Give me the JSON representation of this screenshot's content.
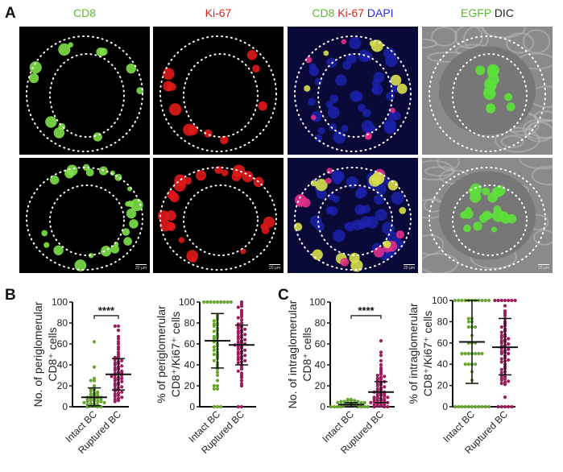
{
  "panel_labels": {
    "a": "A",
    "b": "B",
    "c": "C"
  },
  "column_titles": [
    {
      "parts": [
        {
          "text": "CD8",
          "color": "#5cb82e"
        }
      ]
    },
    {
      "parts": [
        {
          "text": "Ki-67",
          "color": "#e0201a"
        }
      ]
    },
    {
      "parts": [
        {
          "text": "CD8 ",
          "color": "#5cb82e"
        },
        {
          "text": "Ki-67 ",
          "color": "#e0201a"
        },
        {
          "text": "DAPI",
          "color": "#2a2ae0"
        }
      ]
    },
    {
      "parts": [
        {
          "text": "EGFP ",
          "color": "#5cb82e"
        },
        {
          "text": "DIC",
          "color": "#222222"
        }
      ]
    }
  ],
  "scale_bar": "20 μm",
  "colors": {
    "intact": "#6aa532",
    "ruptured": "#9b1c5c"
  },
  "chart_data": [
    {
      "type": "scatter",
      "ylabel": [
        "No. of periglomerular",
        "CD8⁺ cells"
      ],
      "ylim": [
        0,
        100
      ],
      "yticks": [
        "0",
        "20",
        "40",
        "60",
        "80",
        "100"
      ],
      "categories": [
        "Intact BC",
        "Ruptured BC"
      ],
      "significance": "****",
      "series": [
        {
          "category": "Intact BC",
          "mean": 9,
          "sd_range": [
            1,
            18
          ],
          "values": [
            62,
            38,
            27,
            25,
            25,
            20,
            18,
            17,
            16,
            15,
            14,
            13,
            12,
            12,
            11,
            10,
            10,
            9,
            9,
            8,
            8,
            8,
            7,
            7,
            6,
            6,
            5,
            5,
            5,
            4,
            4,
            3,
            3,
            2,
            2,
            1,
            1,
            0,
            0,
            0
          ]
        },
        {
          "category": "Ruptured BC",
          "mean": 31,
          "sd_range": [
            16,
            46
          ],
          "values": [
            77,
            77,
            73,
            67,
            65,
            62,
            60,
            57,
            55,
            52,
            50,
            48,
            47,
            46,
            45,
            44,
            43,
            42,
            41,
            40,
            39,
            38,
            37,
            36,
            35,
            34,
            33,
            32,
            32,
            31,
            30,
            30,
            29,
            28,
            27,
            27,
            26,
            25,
            24,
            23,
            22,
            21,
            20,
            19,
            18,
            17,
            16,
            15,
            14,
            13,
            12,
            11,
            10,
            9,
            8,
            7,
            6,
            5
          ]
        }
      ]
    },
    {
      "type": "scatter",
      "ylabel": [
        "% of periglomerular",
        "CD8⁺/Ki67⁺ cells"
      ],
      "ylim": [
        0,
        100
      ],
      "yticks": [
        "0",
        "20",
        "40",
        "60",
        "80",
        "100"
      ],
      "categories": [
        "Intact BC",
        "Ruptured BC"
      ],
      "series": [
        {
          "category": "Intact BC",
          "mean": 63,
          "sd_range": [
            37,
            89
          ],
          "values": [
            100,
            100,
            100,
            100,
            100,
            100,
            100,
            100,
            100,
            87,
            85,
            83,
            82,
            80,
            79,
            78,
            77,
            75,
            73,
            72,
            70,
            68,
            67,
            66,
            65,
            63,
            62,
            60,
            58,
            57,
            55,
            54,
            52,
            50,
            50,
            48,
            46,
            44,
            42,
            40,
            38,
            36,
            33,
            30,
            25,
            20,
            20,
            17,
            17,
            0,
            0,
            0
          ]
        },
        {
          "category": "Ruptured BC",
          "mean": 59,
          "sd_range": [
            40,
            78
          ],
          "values": [
            100,
            98,
            96,
            95,
            92,
            90,
            88,
            86,
            85,
            83,
            80,
            79,
            78,
            77,
            76,
            75,
            74,
            73,
            72,
            71,
            70,
            69,
            68,
            67,
            66,
            65,
            64,
            63,
            62,
            61,
            60,
            60,
            59,
            58,
            57,
            56,
            55,
            54,
            53,
            52,
            51,
            50,
            49,
            48,
            47,
            46,
            45,
            44,
            43,
            42,
            40,
            38,
            36,
            34,
            32,
            30,
            28,
            25,
            22,
            20,
            0,
            0
          ]
        }
      ]
    },
    {
      "type": "scatter",
      "ylabel": [
        "No. of intraglomerular",
        "CD8⁺ cells"
      ],
      "ylim": [
        0,
        100
      ],
      "yticks": [
        "0",
        "20",
        "40",
        "60",
        "80",
        "100"
      ],
      "categories": [
        "Intact BC",
        "Ruptured BC"
      ],
      "significance": "****",
      "series": [
        {
          "category": "Intact BC",
          "mean": 2,
          "sd_range": [
            0,
            4
          ],
          "values": [
            7,
            7,
            6,
            6,
            6,
            5,
            5,
            5,
            4,
            4,
            4,
            3,
            3,
            3,
            2,
            2,
            2,
            2,
            1,
            1,
            1,
            1,
            0,
            0,
            0,
            0,
            0,
            0,
            0,
            0
          ]
        },
        {
          "category": "Ruptured BC",
          "mean": 14,
          "sd_range": [
            4,
            24
          ],
          "values": [
            63,
            52,
            49,
            44,
            40,
            37,
            35,
            33,
            31,
            30,
            29,
            28,
            27,
            26,
            25,
            24,
            23,
            22,
            21,
            20,
            19,
            18,
            17,
            16,
            15,
            14,
            14,
            13,
            12,
            12,
            11,
            10,
            10,
            9,
            9,
            8,
            8,
            7,
            7,
            6,
            6,
            5,
            5,
            4,
            4,
            3,
            3,
            2,
            2,
            1,
            1,
            0,
            0,
            0
          ]
        }
      ]
    },
    {
      "type": "scatter",
      "ylabel": [
        "% of intraglomerular",
        "CD8⁺/Ki67⁺ cells"
      ],
      "ylim": [
        0,
        100
      ],
      "yticks": [
        "0",
        "20",
        "40",
        "60",
        "80",
        "100"
      ],
      "categories": [
        "Intact BC",
        "Ruptured BC"
      ],
      "series": [
        {
          "category": "Intact BC",
          "mean": 61,
          "sd_range": [
            22,
            100
          ],
          "values": [
            100,
            100,
            100,
            100,
            100,
            100,
            100,
            100,
            100,
            100,
            100,
            83,
            83,
            80,
            80,
            75,
            75,
            75,
            67,
            60,
            60,
            60,
            50,
            50,
            50,
            50,
            50,
            50,
            50,
            40,
            40,
            40,
            40,
            33,
            25,
            0,
            0,
            0,
            0,
            0,
            0,
            0,
            0,
            0,
            0,
            0
          ]
        },
        {
          "category": "Ruptured BC",
          "mean": 56,
          "sd_range": [
            30,
            83
          ],
          "values": [
            100,
            100,
            100,
            100,
            100,
            100,
            100,
            95,
            90,
            88,
            86,
            83,
            80,
            78,
            76,
            75,
            73,
            71,
            70,
            68,
            67,
            66,
            65,
            64,
            63,
            62,
            61,
            60,
            59,
            58,
            57,
            56,
            55,
            54,
            53,
            52,
            51,
            50,
            50,
            48,
            46,
            45,
            44,
            43,
            42,
            40,
            38,
            36,
            35,
            33,
            32,
            30,
            29,
            28,
            27,
            26,
            25,
            24,
            23,
            22,
            21,
            9,
            0,
            0,
            0,
            0,
            0
          ]
        }
      ]
    }
  ]
}
